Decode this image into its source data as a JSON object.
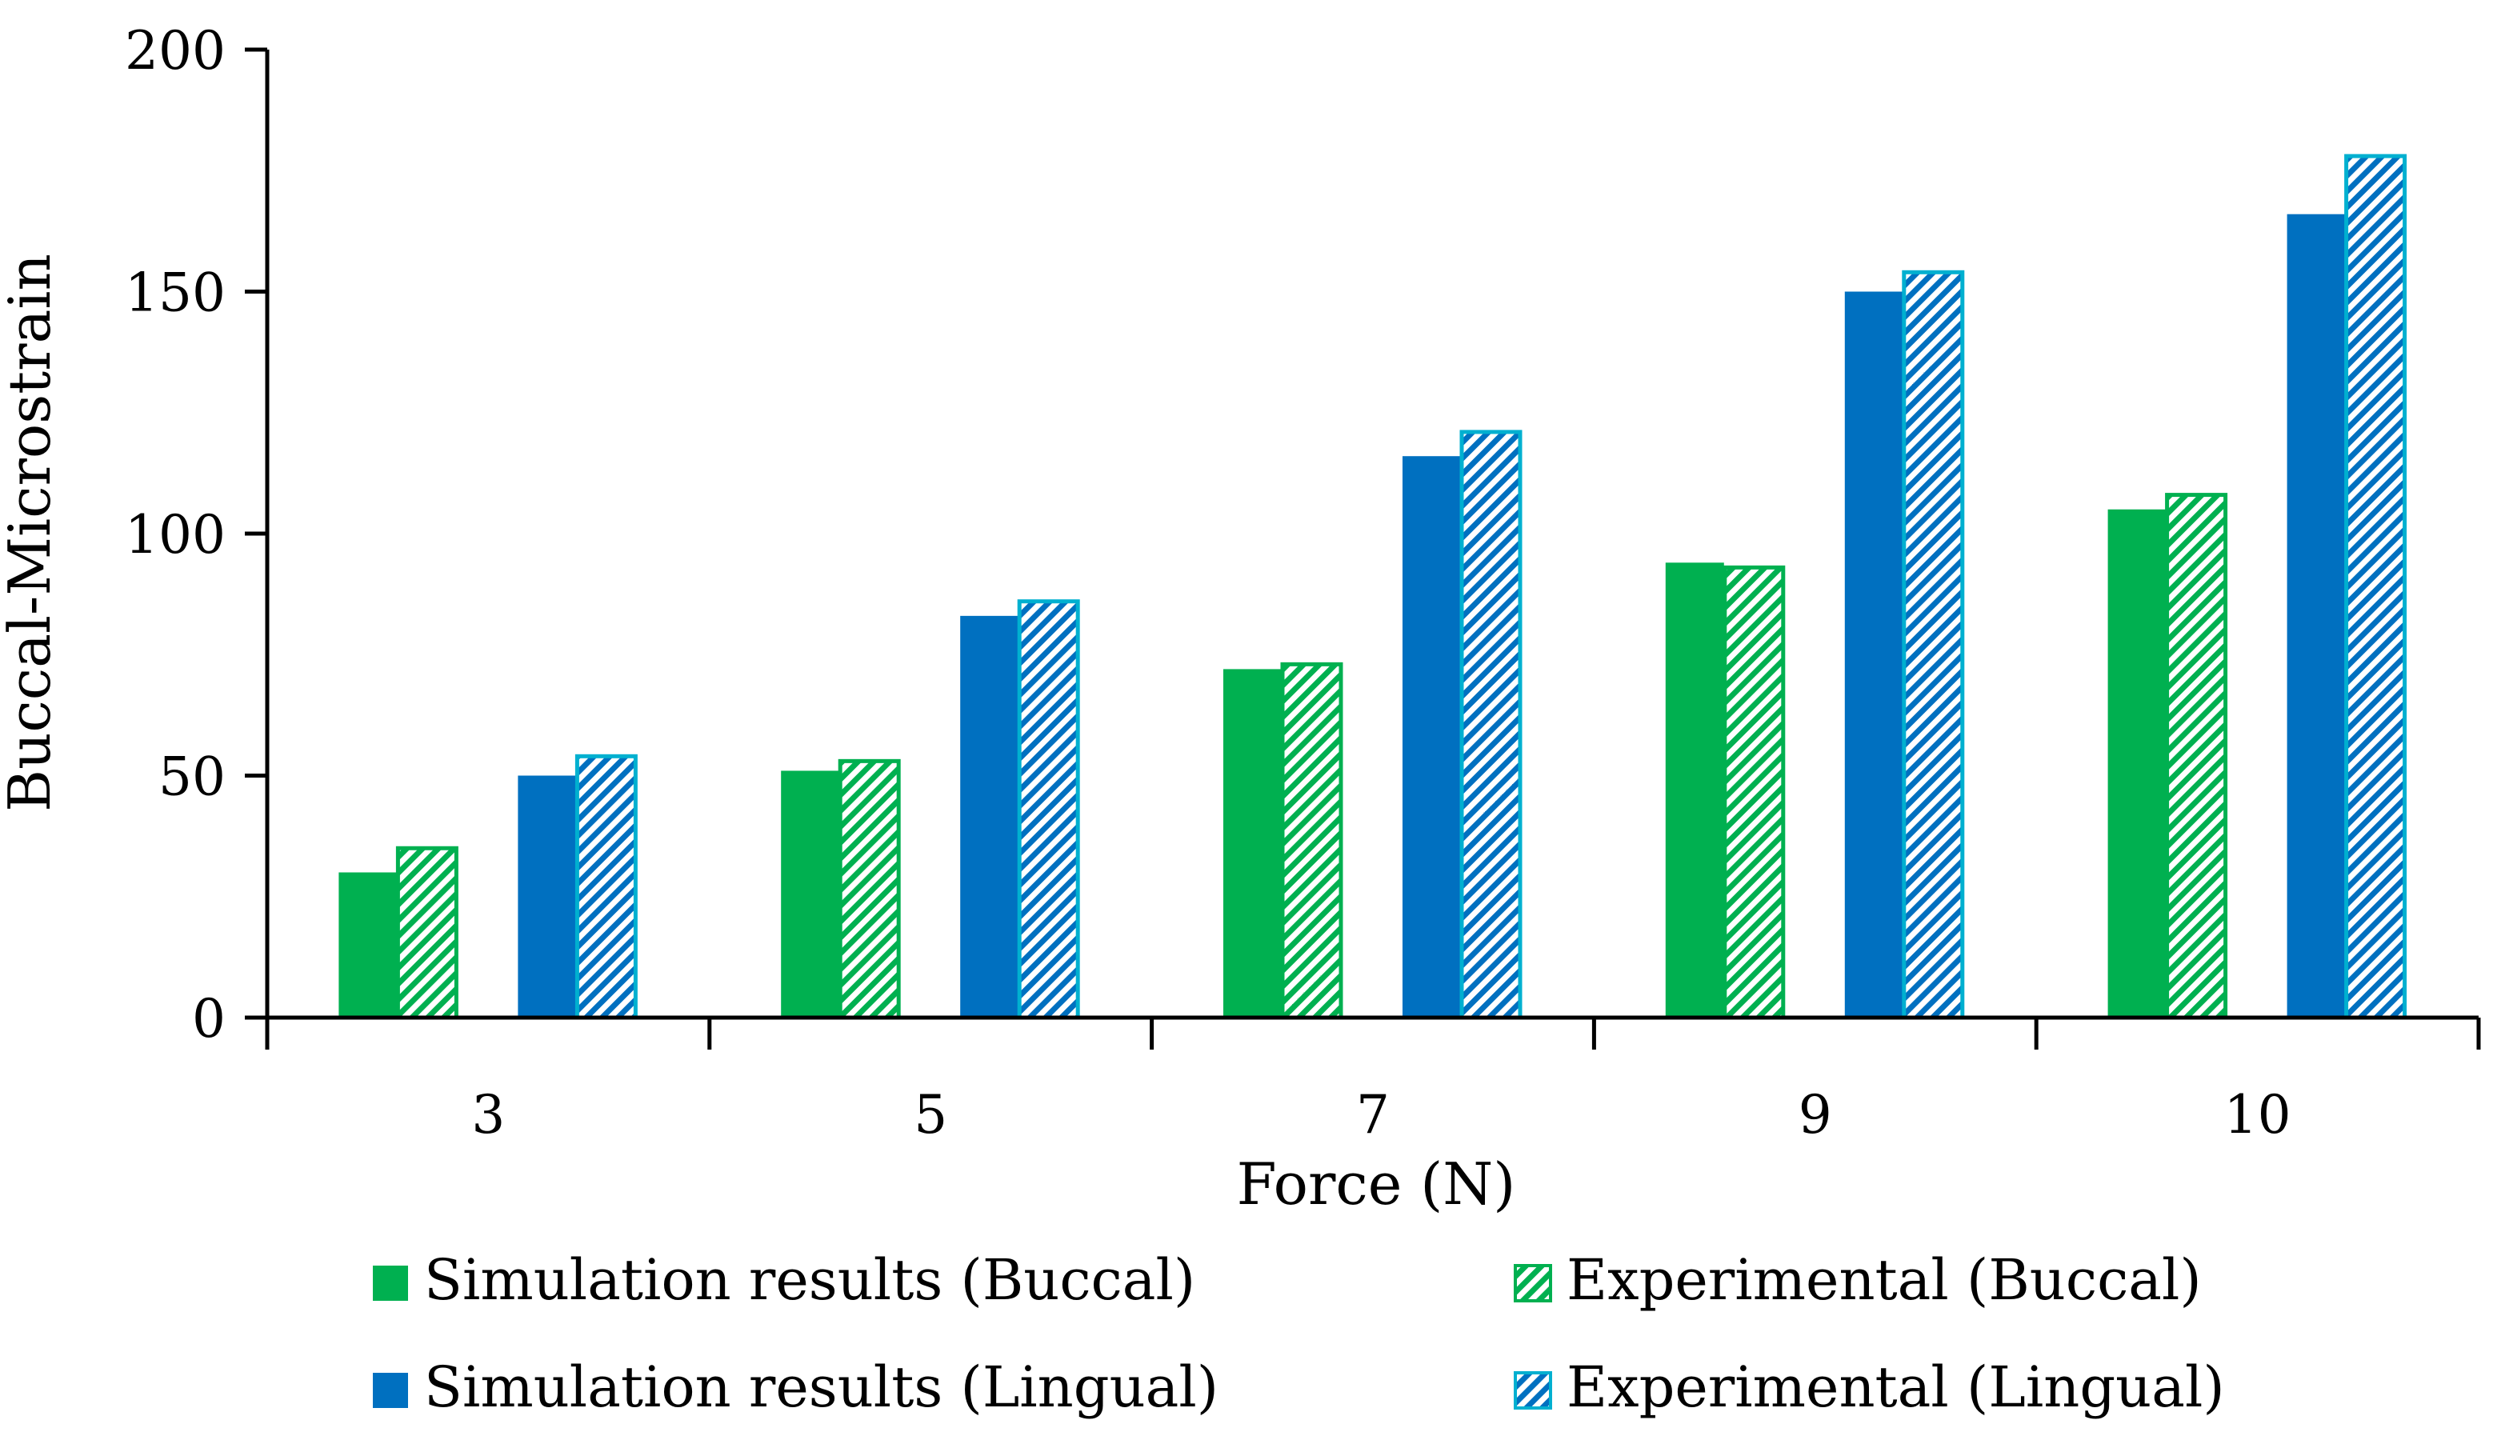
{
  "chart_data": {
    "type": "bar",
    "title": "",
    "xlabel": "Force (N)",
    "ylabel": "Buccal-Microstrain",
    "categories": [
      "3",
      "5",
      "7",
      "9",
      "10"
    ],
    "ylim": [
      0,
      200
    ],
    "yticks": [
      0,
      50,
      100,
      150,
      200
    ],
    "grid": false,
    "legend_position": "bottom",
    "series": [
      {
        "name": "Simulation results (Buccal)",
        "values": [
          30,
          51,
          72,
          94,
          105
        ],
        "fill": "solid",
        "color": "#00b050",
        "edge_color": "#00b050"
      },
      {
        "name": "Experimental (Buccal)",
        "values": [
          35,
          53,
          73,
          93,
          108
        ],
        "fill": "hatched",
        "color": "#00b050",
        "edge_color": "#00b050"
      },
      {
        "name": "Simulation results (Lingual)",
        "values": [
          50,
          83,
          116,
          150,
          166
        ],
        "fill": "solid",
        "color": "#0070c0",
        "edge_color": "#0070c0"
      },
      {
        "name": "Experimental (Lingual)",
        "values": [
          54,
          86,
          121,
          154,
          178
        ],
        "fill": "hatched",
        "color": "#0070c0",
        "edge_color": "#00b0d0"
      }
    ]
  }
}
